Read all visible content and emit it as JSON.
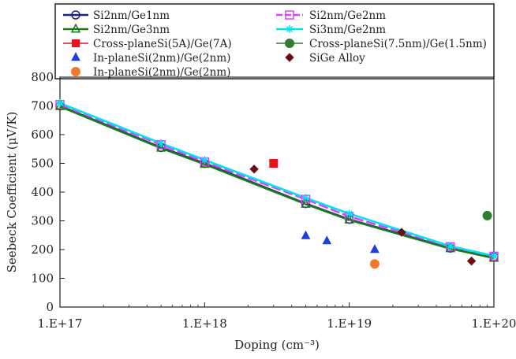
{
  "chart_data": {
    "type": "scatter",
    "xlabel": "Doping (cm⁻³)",
    "ylabel": "Seebeck Coefficient (μV/K)",
    "x_scale": "log",
    "xlim": [
      1e+17,
      1e+20
    ],
    "ylim": [
      0,
      800
    ],
    "x_ticks": [
      {
        "value": 1e+17,
        "label": "1.E+17"
      },
      {
        "value": 1e+18,
        "label": "1.E+18"
      },
      {
        "value": 1e+19,
        "label": "1.E+19"
      },
      {
        "value": 1e+20,
        "label": "1.E+20"
      }
    ],
    "y_ticks": [
      0,
      100,
      200,
      300,
      400,
      500,
      600,
      700,
      800
    ],
    "grid": false,
    "legend_position": "top",
    "series": [
      {
        "name": "Si2nm/Ge1nm",
        "kind": "line",
        "marker": "circle",
        "color": "#1a237e",
        "x": [
          1e+17,
          5e+17,
          1e+18,
          5e+18,
          1e+19,
          5e+19,
          1e+20
        ],
        "y": [
          700,
          555,
          500,
          360,
          305,
          205,
          175
        ]
      },
      {
        "name": "Si2nm/Ge2nm",
        "kind": "line",
        "marker": "square",
        "color": "#e040fb",
        "dashed": true,
        "x": [
          1e+17,
          5e+17,
          1e+18,
          5e+18,
          1e+19,
          5e+19,
          1e+20
        ],
        "y": [
          705,
          565,
          505,
          375,
          315,
          210,
          177
        ]
      },
      {
        "name": "Si2nm/Ge3nm",
        "kind": "line",
        "marker": "triangle",
        "color": "#1b7a1b",
        "x": [
          1e+17,
          5e+17,
          1e+18,
          5e+18,
          1e+19,
          5e+19,
          1e+20
        ],
        "y": [
          698,
          553,
          497,
          358,
          303,
          203,
          170
        ]
      },
      {
        "name": "Si3nm/Ge2nm",
        "kind": "line",
        "marker": "star",
        "color": "#00e5ee",
        "x": [
          1e+17,
          5e+17,
          1e+18,
          5e+18,
          1e+19,
          5e+19,
          1e+20
        ],
        "y": [
          710,
          570,
          512,
          380,
          325,
          212,
          178
        ]
      },
      {
        "name": "Cross-planeSi(5A)/Ge(7A)",
        "kind": "scatter",
        "marker": "square",
        "color": "#e8141c",
        "x": [
          3e+18
        ],
        "y": [
          500
        ]
      },
      {
        "name": "Cross-planeSi(7.5nm)/Ge(1.5nm)",
        "kind": "scatter",
        "marker": "circle",
        "color": "#2e7d32",
        "x": [
          9e+19
        ],
        "y": [
          318
        ]
      },
      {
        "name": "In-planeSi(2nm)/Ge(2nm)",
        "kind": "scatter",
        "marker": "triangle",
        "color": "#1e3ed8",
        "x": [
          5e+18,
          7e+18,
          1.5e+19
        ],
        "y": [
          248,
          230,
          200
        ]
      },
      {
        "name": "SiGe Alloy",
        "kind": "scatter",
        "marker": "diamond",
        "color": "#6b0f14",
        "x": [
          2.2e+18,
          2.3e+19,
          7e+19
        ],
        "y": [
          480,
          260,
          160
        ]
      },
      {
        "name": "In-planeSi(2nm)/Ge(2nm)",
        "kind": "scatter",
        "marker": "circle",
        "color": "#f07a2a",
        "x": [
          1.5e+19
        ],
        "y": [
          150
        ]
      }
    ],
    "legend": [
      {
        "label": "Si2nm/Ge1nm",
        "series_index": 0
      },
      {
        "label": "Si2nm/Ge2nm",
        "series_index": 1
      },
      {
        "label": "Si2nm/Ge3nm",
        "series_index": 2
      },
      {
        "label": "Si3nm/Ge2nm",
        "series_index": 3
      },
      {
        "label": "Cross-planeSi(5A)/Ge(7A)",
        "series_index": 4
      },
      {
        "label": "Cross-planeSi(7.5nm)/Ge(1.5nm)",
        "series_index": 5
      },
      {
        "label": "In-planeSi(2nm)/Ge(2nm)",
        "series_index": 6
      },
      {
        "label": "SiGe Alloy",
        "series_index": 7
      },
      {
        "label": "In-planeSi(2nm)/Ge(2nm)",
        "series_index": 8
      }
    ]
  }
}
